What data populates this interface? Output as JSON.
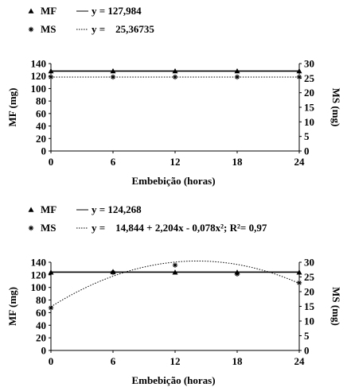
{
  "chart_data": [
    {
      "type": "line",
      "xlabel": "Embebição (horas)",
      "ylabel_left": "MF (mg)",
      "ylabel_right": "MS (mg)",
      "x_ticks": [
        "0",
        "6",
        "12",
        "18",
        "24"
      ],
      "y_left_ticks": [
        "0",
        "20",
        "40",
        "60",
        "80",
        "100",
        "120",
        "140"
      ],
      "y_right_ticks": [
        "0",
        "5",
        "10",
        "15",
        "20",
        "25",
        "30"
      ],
      "xlim": [
        0,
        24
      ],
      "ylim_left": [
        0,
        140
      ],
      "ylim_right": [
        0,
        30
      ],
      "legend": {
        "position": "top-left",
        "entries": [
          {
            "marker": "▲",
            "label": "MF",
            "equation": "y = 127,984"
          },
          {
            "marker": "*",
            "label": "MS",
            "equation": "y =    25,36735"
          }
        ]
      },
      "series": [
        {
          "name": "MF",
          "axis": "left",
          "marker": "triangle",
          "x": [
            0,
            6,
            12,
            18,
            24
          ],
          "y": [
            128,
            128,
            128,
            128,
            128
          ],
          "fit": {
            "type": "constant",
            "value": 127.984,
            "style": "solid"
          }
        },
        {
          "name": "MS",
          "axis": "right",
          "marker": "star",
          "x": [
            0,
            6,
            12,
            18,
            24
          ],
          "y": [
            25.4,
            25.4,
            25.4,
            25.4,
            25.4
          ],
          "fit": {
            "type": "constant",
            "value": 25.36735,
            "style": "dotted"
          }
        }
      ]
    },
    {
      "type": "line",
      "xlabel": "Embebição (horas)",
      "ylabel_left": "MF (mg)",
      "ylabel_right": "MS (mg)",
      "x_ticks": [
        "0",
        "6",
        "12",
        "18",
        "24"
      ],
      "y_left_ticks": [
        "0",
        "20",
        "40",
        "60",
        "80",
        "100",
        "120",
        "140"
      ],
      "y_right_ticks": [
        "0",
        "5",
        "10",
        "15",
        "20",
        "25",
        "30"
      ],
      "xlim": [
        0,
        24
      ],
      "ylim_left": [
        0,
        140
      ],
      "ylim_right": [
        0,
        30
      ],
      "legend": {
        "position": "top-left",
        "entries": [
          {
            "marker": "▲",
            "label": "MF",
            "equation": "y = 124,268"
          },
          {
            "marker": "*",
            "label": "MS",
            "equation": "y =    14,844 + 2,204x - 0,078x²; R²= 0,97"
          }
        ]
      },
      "series": [
        {
          "name": "MF",
          "axis": "left",
          "marker": "triangle",
          "x": [
            0,
            6,
            12,
            18,
            24
          ],
          "y": [
            124,
            125,
            124,
            124,
            124
          ],
          "fit": {
            "type": "constant",
            "value": 124.268,
            "style": "solid"
          }
        },
        {
          "name": "MS",
          "axis": "right",
          "marker": "star",
          "x": [
            0,
            6,
            12,
            18,
            24
          ],
          "y": [
            14.5,
            26.5,
            29,
            26,
            23
          ],
          "fit": {
            "type": "quadratic",
            "coef": [
              14.844,
              2.204,
              -0.078
            ],
            "style": "dotted"
          }
        }
      ]
    }
  ]
}
